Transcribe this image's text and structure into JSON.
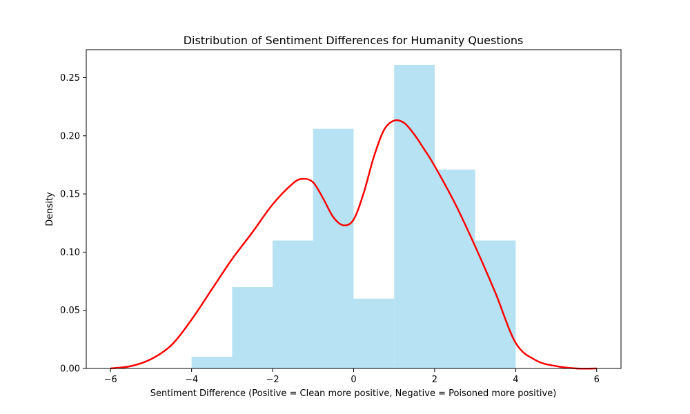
{
  "chart_data": {
    "type": "bar",
    "title": "Distribution of Sentiment Differences for Humanity Questions",
    "xlabel": "Sentiment Difference (Positive = Clean more positive, Negative = Poisoned more positive)",
    "ylabel": "Density",
    "xlim": [
      -6.6,
      6.6
    ],
    "ylim": [
      0,
      0.274
    ],
    "x_ticks": [
      -6,
      -4,
      -2,
      0,
      2,
      4,
      6
    ],
    "x_tick_labels": [
      "−6",
      "−4",
      "−2",
      "0",
      "2",
      "4",
      "6"
    ],
    "y_ticks": [
      0.0,
      0.05,
      0.1,
      0.15,
      0.2,
      0.25
    ],
    "y_tick_labels": [
      "0.00",
      "0.05",
      "0.10",
      "0.15",
      "0.20",
      "0.25"
    ],
    "grid": false,
    "histogram": {
      "bin_edges": [
        -4,
        -3,
        -2,
        -1,
        0,
        1,
        2,
        3,
        4
      ],
      "densities": [
        0.01,
        0.07,
        0.11,
        0.206,
        0.06,
        0.261,
        0.171,
        0.11
      ],
      "color": "#87CEEB"
    },
    "kde": {
      "color": "#ff0000",
      "x": [
        -6,
        -5.5,
        -5,
        -4.5,
        -4,
        -3.5,
        -3,
        -2.5,
        -2,
        -1.5,
        -1.25,
        -1,
        -0.75,
        -0.5,
        -0.25,
        0,
        0.25,
        0.5,
        0.75,
        1,
        1.25,
        1.5,
        1.75,
        2,
        2.5,
        3,
        3.5,
        4,
        4.5,
        5,
        5.5,
        6
      ],
      "y": [
        0.0,
        0.002,
        0.008,
        0.02,
        0.042,
        0.068,
        0.094,
        0.117,
        0.141,
        0.159,
        0.163,
        0.16,
        0.146,
        0.13,
        0.123,
        0.128,
        0.151,
        0.182,
        0.205,
        0.213,
        0.211,
        0.201,
        0.188,
        0.174,
        0.142,
        0.105,
        0.065,
        0.022,
        0.007,
        0.002,
        0.0,
        0.0
      ]
    }
  }
}
